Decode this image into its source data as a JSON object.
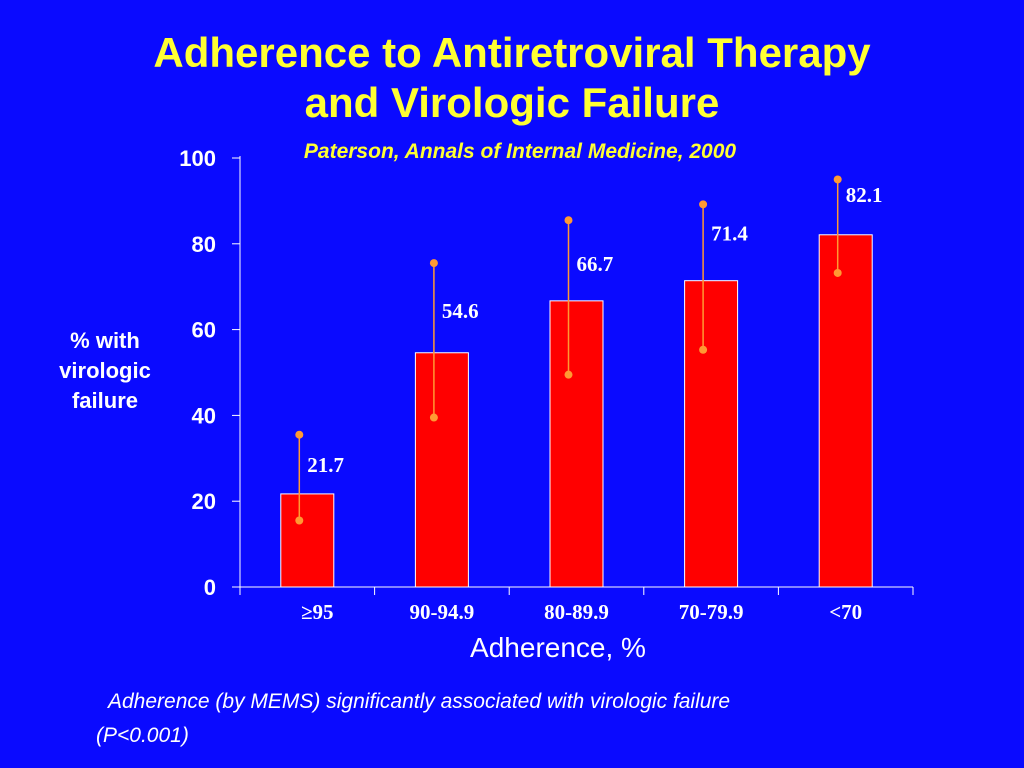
{
  "title_line1": "Adherence to Antiretroviral Therapy",
  "title_line2": "and Virologic Failure",
  "subtitle": "Paterson, Annals of Internal Medicine, 2000",
  "footnote_line1": "Adherence (by MEMS) significantly associated with virologic failure",
  "footnote_line2": "(P<0.001)",
  "colors": {
    "background": "#0a0aff",
    "title": "#ffff33",
    "bar": "#ff0000",
    "error_bar": "#ff9933",
    "text": "#ffffff"
  },
  "chart_data": {
    "type": "bar",
    "title": "Adherence to Antiretroviral Therapy and Virologic Failure",
    "subtitle": "Paterson, Annals of Internal Medicine, 2000",
    "xlabel": "Adherence, %",
    "ylabel": "% with virologic failure",
    "categories": [
      "≥95",
      "90-94.9",
      "80-89.9",
      "70-79.9",
      "<70"
    ],
    "values": [
      21.7,
      54.6,
      66.7,
      71.4,
      82.1
    ],
    "error_low": [
      15.5,
      39.5,
      49.5,
      55.3,
      73.2
    ],
    "error_high": [
      35.5,
      75.5,
      85.5,
      89.2,
      95.0
    ],
    "ylim": [
      0,
      100
    ],
    "yticks": [
      0,
      20,
      40,
      60,
      80,
      100
    ],
    "grid": false,
    "legend": "none"
  }
}
